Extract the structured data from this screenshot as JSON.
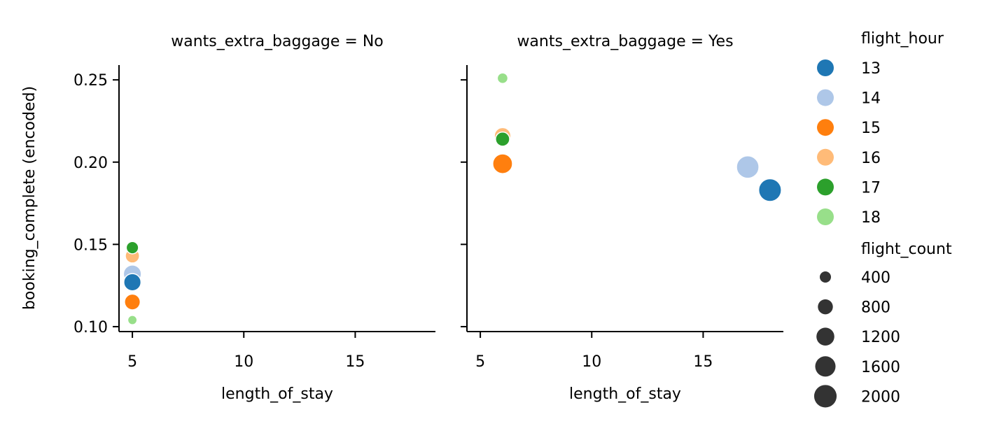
{
  "chart_data": {
    "type": "scatter",
    "ylabel": "booking_complete (encoded)",
    "xlabel": "length_of_stay",
    "xlim": [
      4.4,
      18.6
    ],
    "ylim": [
      0.097,
      0.259
    ],
    "xticks": [
      5,
      10,
      15
    ],
    "yticks": [
      0.1,
      0.15,
      0.2,
      0.25
    ],
    "ytick_labels": [
      "0.10",
      "0.15",
      "0.20",
      "0.25"
    ],
    "xtick_labels": [
      "5",
      "10",
      "15"
    ],
    "panels": [
      {
        "title": "wants_extra_baggage = No",
        "points": [
          {
            "x": 5,
            "y": 0.148,
            "hour": "17",
            "count": 500
          },
          {
            "x": 5,
            "y": 0.143,
            "hour": "16",
            "count": 700
          },
          {
            "x": 5,
            "y": 0.132,
            "hour": "14",
            "count": 1200
          },
          {
            "x": 5,
            "y": 0.127,
            "hour": "13",
            "count": 1100
          },
          {
            "x": 5,
            "y": 0.115,
            "hour": "15",
            "count": 900
          },
          {
            "x": 5,
            "y": 0.104,
            "hour": "18",
            "count": 250
          }
        ]
      },
      {
        "title": "wants_extra_baggage = Yes",
        "points": [
          {
            "x": 6,
            "y": 0.251,
            "hour": "18",
            "count": 350
          },
          {
            "x": 6,
            "y": 0.216,
            "hour": "16",
            "count": 1000
          },
          {
            "x": 6,
            "y": 0.214,
            "hour": "17",
            "count": 700
          },
          {
            "x": 6,
            "y": 0.199,
            "hour": "15",
            "count": 1500
          },
          {
            "x": 17,
            "y": 0.197,
            "hour": "14",
            "count": 2000
          },
          {
            "x": 18,
            "y": 0.183,
            "hour": "13",
            "count": 2050
          }
        ]
      }
    ],
    "legend": {
      "placement": "right",
      "hue_title": "flight_hour",
      "hue_entries": [
        {
          "label": "13",
          "color": "#1f77b4"
        },
        {
          "label": "14",
          "color": "#aec7e8"
        },
        {
          "label": "15",
          "color": "#ff7f0e"
        },
        {
          "label": "16",
          "color": "#ffbb78"
        },
        {
          "label": "17",
          "color": "#2ca02c"
        },
        {
          "label": "18",
          "color": "#98df8a"
        }
      ],
      "size_title": "flight_count",
      "size_entries": [
        {
          "label": "400",
          "value": 400
        },
        {
          "label": "800",
          "value": 800
        },
        {
          "label": "1200",
          "value": 1200
        },
        {
          "label": "1600",
          "value": 1600
        },
        {
          "label": "2000",
          "value": 2000
        }
      ],
      "size_marker_color": "#333333"
    },
    "grid": false
  }
}
